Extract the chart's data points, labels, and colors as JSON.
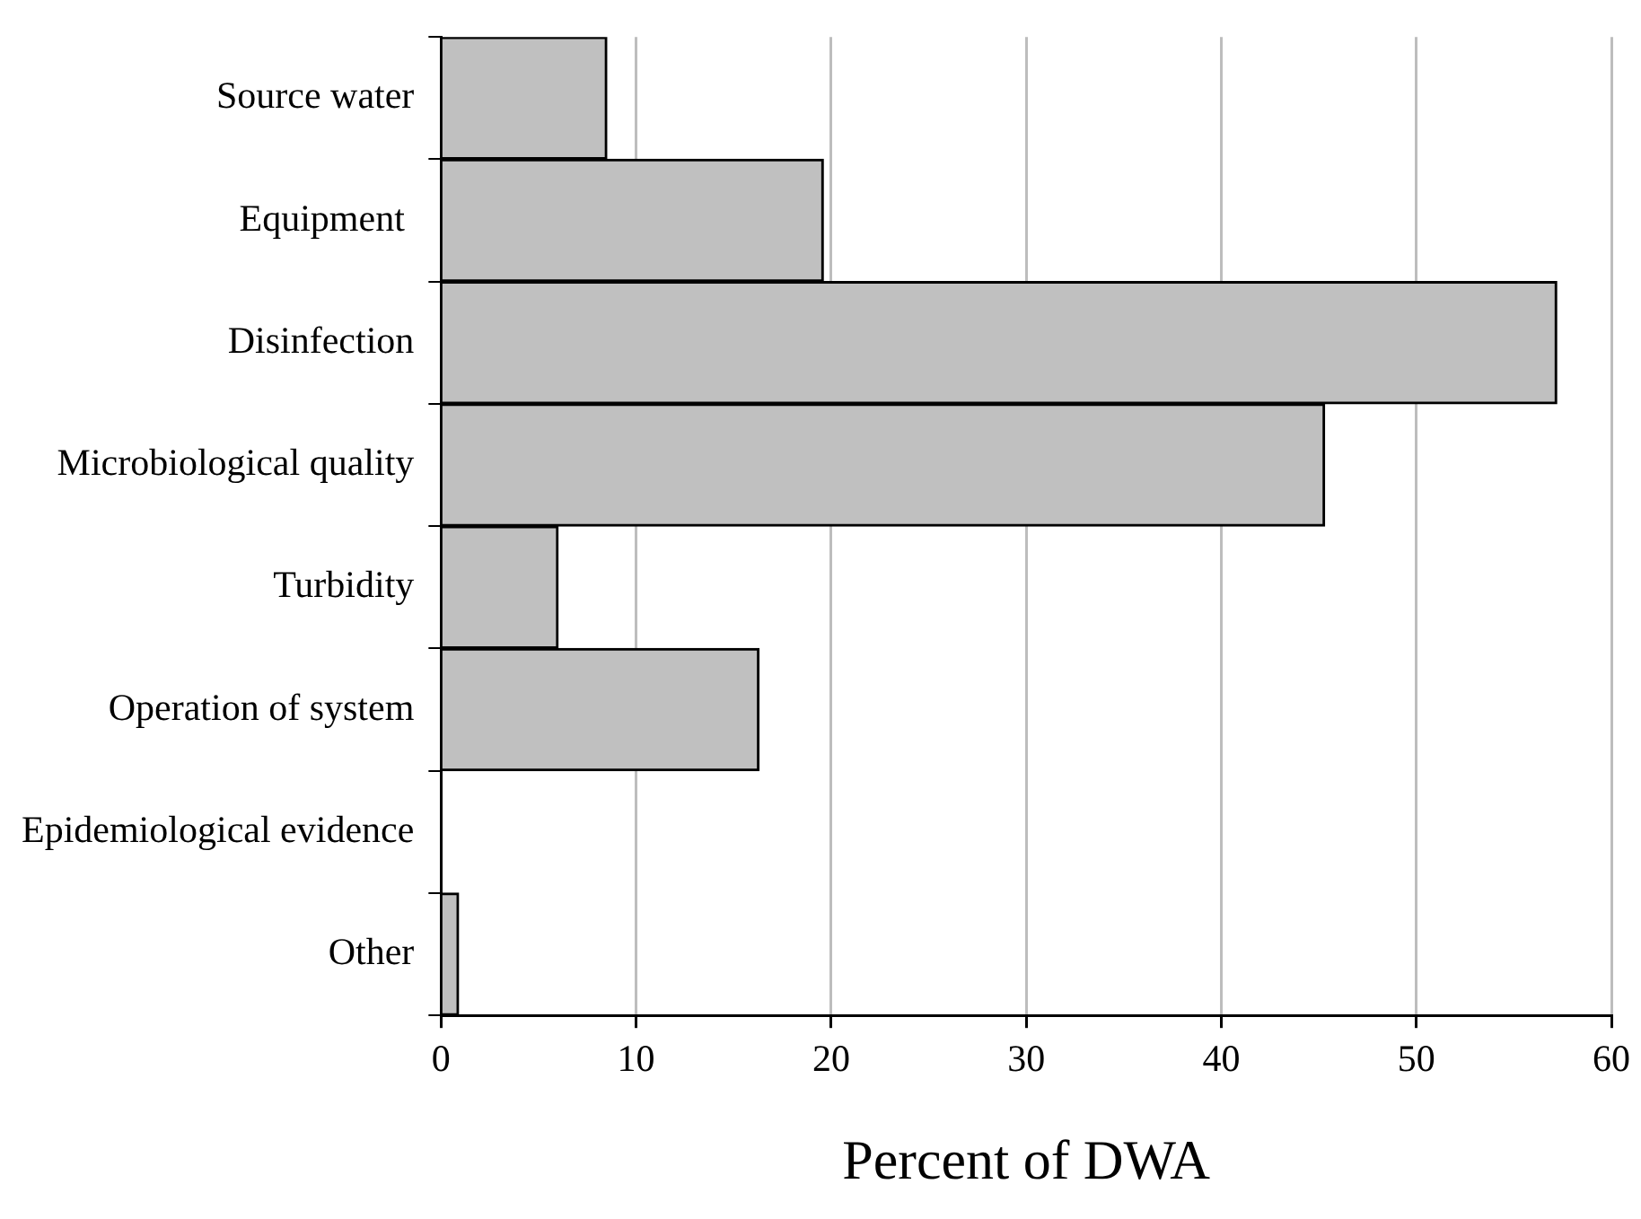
{
  "chart_data": {
    "type": "bar",
    "orientation": "horizontal",
    "xlabel": "Percent of DWA",
    "categories": [
      "Source water",
      "Equipment ",
      "Disinfection",
      "Microbiological quality",
      "Turbidity",
      "Operation of system",
      "Epidemiological evidence",
      "Other"
    ],
    "values": [
      8.5,
      19.6,
      57.2,
      45.3,
      6.0,
      16.3,
      0,
      0.9
    ],
    "color": "#c0c0c0",
    "xlim": [
      0,
      60
    ],
    "xticks": [
      0,
      10,
      20,
      30,
      40,
      50,
      60
    ],
    "grid": "x",
    "legend": false
  }
}
